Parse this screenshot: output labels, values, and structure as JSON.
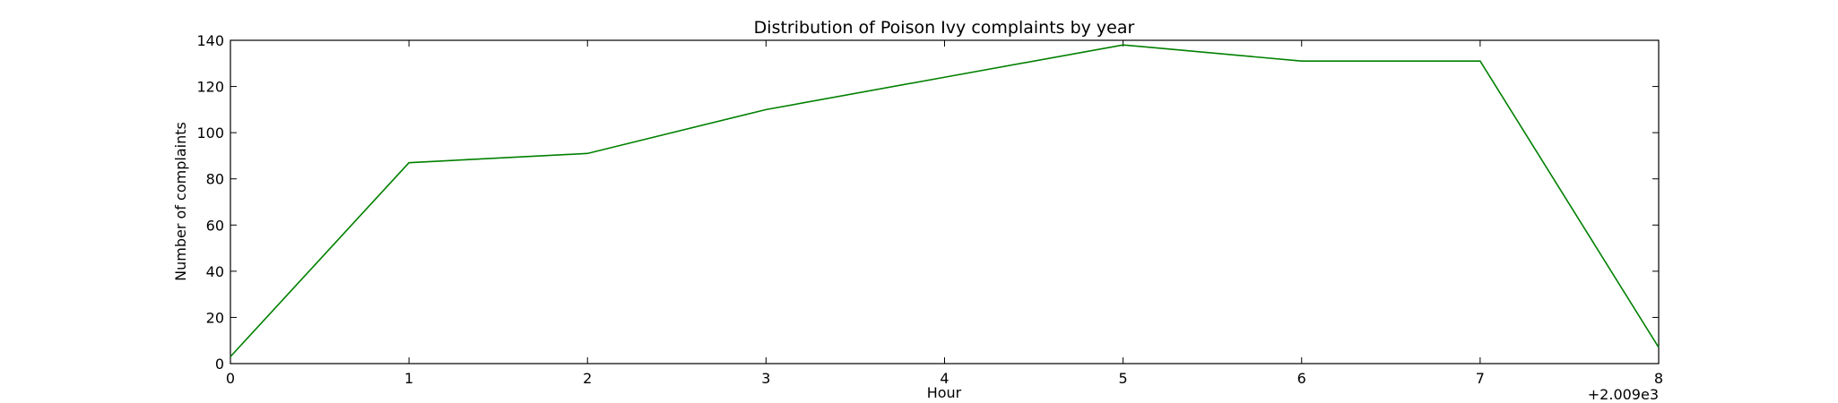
{
  "chart_data": {
    "type": "line",
    "title": "Distribution of  Poison Ivy complaints by year",
    "xlabel": "Hour",
    "ylabel": "Number of complaints",
    "x_offset_label": "+2.009e3",
    "xlim": [
      0,
      8
    ],
    "ylim": [
      0,
      140
    ],
    "x_ticks": [
      0,
      1,
      2,
      3,
      4,
      5,
      6,
      7,
      8
    ],
    "y_ticks": [
      0,
      20,
      40,
      60,
      80,
      100,
      120,
      140
    ],
    "grid": false,
    "series": [
      {
        "color": "#008000",
        "x": [
          0,
          1,
          2,
          3,
          4,
          5,
          6,
          7,
          8
        ],
        "y": [
          3,
          87,
          91,
          110,
          124,
          138,
          131,
          131,
          7
        ]
      }
    ]
  }
}
